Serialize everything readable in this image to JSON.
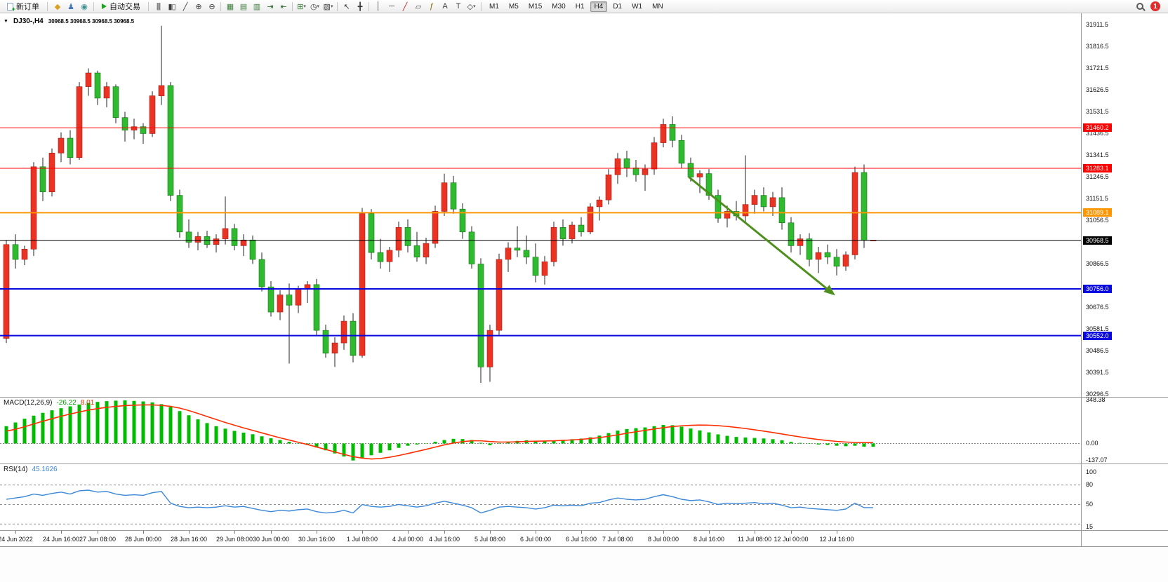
{
  "toolbar": {
    "new_order_label": "新订单",
    "autotrading_label": "自动交易",
    "notification_count": "1",
    "left_icons": [
      {
        "name": "mql5-wizard-icon",
        "glyph": "◆",
        "color": "#dba021"
      },
      {
        "name": "community-icon",
        "glyph": "♟",
        "color": "#4a76b8"
      },
      {
        "name": "market-watch-icon",
        "glyph": "◉",
        "color": "#3f8f8f"
      }
    ],
    "groups": [
      [
        {
          "name": "bar-chart-icon",
          "glyph": "|||"
        },
        {
          "name": "candlestick-chart-icon",
          "glyph": "▮▯"
        },
        {
          "name": "line-chart-icon",
          "glyph": "╱"
        },
        {
          "name": "zoom-in-icon",
          "glyph": "⊕"
        },
        {
          "name": "zoom-out-icon",
          "glyph": "⊖"
        }
      ],
      [
        {
          "name": "tile-windows-icon",
          "glyph": "▦",
          "color": "#3f7f3f"
        },
        {
          "name": "cascade-windows-icon",
          "glyph": "▤",
          "color": "#3f7f3f"
        },
        {
          "name": "arrange-windows-icon",
          "glyph": "▥",
          "color": "#3f7f3f"
        },
        {
          "name": "auto-scroll-icon",
          "glyph": "⇥",
          "color": "#2f6f2f"
        },
        {
          "name": "chart-shift-icon",
          "glyph": "⇤",
          "color": "#2f6f2f"
        }
      ],
      [
        {
          "name": "indicators-icon",
          "glyph": "⊞",
          "color": "#2e7d32",
          "dropdown": true
        },
        {
          "name": "periods-icon",
          "glyph": "◷",
          "dropdown": true
        },
        {
          "name": "templates-icon",
          "glyph": "▧",
          "dropdown": true
        }
      ],
      [
        {
          "name": "cursor-icon",
          "glyph": "↖"
        },
        {
          "name": "crosshair-icon",
          "glyph": "╋"
        }
      ],
      [
        {
          "name": "vertical-line-icon",
          "glyph": "│"
        },
        {
          "name": "horizontal-line-icon",
          "glyph": "─"
        },
        {
          "name": "trendline-icon",
          "glyph": "╱",
          "color": "#b02020"
        },
        {
          "name": "channel-icon",
          "glyph": "▱"
        },
        {
          "name": "fibonacci-icon",
          "glyph": "ƒ",
          "color": "#8a6d00"
        },
        {
          "name": "text-icon",
          "glyph": "A"
        },
        {
          "name": "text-label-icon",
          "glyph": "T"
        },
        {
          "name": "arrows-shapes-icon",
          "glyph": "◇",
          "dropdown": true
        }
      ]
    ],
    "timeframes": [
      "M1",
      "M5",
      "M15",
      "M30",
      "H1",
      "H4",
      "D1",
      "W1",
      "MN"
    ],
    "active_timeframe": "H4"
  },
  "chart": {
    "symbol_title": "DJ30-,H4",
    "ohlc_line": "30968.5 30968.5 30968.5 30968.5",
    "price_axis_labels": [
      "31911.5",
      "31816.5",
      "31721.5",
      "31626.5",
      "31531.5",
      "31436.5",
      "31341.5",
      "31246.5",
      "31151.5",
      "31056.5",
      "30866.5",
      "30676.5",
      "30581.5",
      "30486.5",
      "30391.5",
      "30296.5"
    ],
    "price_line_badges": [
      {
        "name": "resistance-line-1",
        "price": 31460.2,
        "text": "31460.2",
        "color": "#ff0000",
        "line_width": 1
      },
      {
        "name": "resistance-line-2",
        "price": 31283.1,
        "text": "31283.1",
        "color": "#ff0000",
        "line_width": 1
      },
      {
        "name": "pivot-line",
        "price": 31089.1,
        "text": "31089.1",
        "color": "#ff9500",
        "line_width": 2
      },
      {
        "name": "current-price",
        "price": 30968.5,
        "text": "30968.5",
        "color": "#000000",
        "line_width": 1
      },
      {
        "name": "support-line-1",
        "price": 30756.0,
        "text": "30756.0",
        "color": "#0808e0",
        "line_width": 2
      },
      {
        "name": "support-line-2",
        "price": 30552.0,
        "text": "30552.0",
        "color": "#0808e0",
        "line_width": 2
      }
    ],
    "trend_arrow": {
      "color": "#4e8f1e",
      "start_candle": 74.8,
      "start_price": 31245,
      "end_candle": 90.3,
      "end_price": 30745
    }
  },
  "chart_data": {
    "type": "candlestick",
    "symbol": "DJ30-",
    "timeframe": "H4",
    "ylim": [
      30280,
      31960
    ],
    "colors": {
      "up": "#eb3323",
      "down": "#2fba2f",
      "wick": "#222222",
      "macd_histogram": "#00bb00",
      "macd_signal": "#ff2e00",
      "rsi_line": "#3a87d8"
    },
    "x_labels": [
      "24 Jun 2022",
      "24 Jun 16:00",
      "27 Jun 08:00",
      "28 Jun 00:00",
      "28 Jun 16:00",
      "29 Jun 08:00",
      "30 Jun 00:00",
      "30 Jun 16:00",
      "1 Jul 08:00",
      "4 Jul 00:00",
      "4 Jul 16:00",
      "5 Jul 08:00",
      "6 Jul 00:00",
      "6 Jul 16:00",
      "7 Jul 08:00",
      "8 Jul 00:00",
      "8 Jul 16:00",
      "11 Jul 08:00",
      "12 Jul 00:00",
      "12 Jul 16:00"
    ],
    "x_label_candle_index": [
      1,
      6,
      10,
      15,
      20,
      25,
      29,
      34,
      39,
      44,
      48,
      53,
      58,
      63,
      67,
      72,
      77,
      82,
      86,
      91
    ],
    "candles": [
      [
        30540,
        30970,
        30520,
        30950
      ],
      [
        30950,
        30995,
        30845,
        30885
      ],
      [
        30885,
        30945,
        30860,
        30930
      ],
      [
        30930,
        31310,
        30900,
        31290
      ],
      [
        31290,
        31330,
        31140,
        31180
      ],
      [
        31180,
        31370,
        31160,
        31350
      ],
      [
        31350,
        31440,
        31310,
        31415
      ],
      [
        31415,
        31450,
        31300,
        31330
      ],
      [
        31330,
        31660,
        31320,
        31640
      ],
      [
        31640,
        31720,
        31600,
        31700
      ],
      [
        31700,
        31710,
        31560,
        31590
      ],
      [
        31590,
        31660,
        31550,
        31640
      ],
      [
        31640,
        31650,
        31480,
        31505
      ],
      [
        31505,
        31530,
        31400,
        31450
      ],
      [
        31450,
        31500,
        31410,
        31465
      ],
      [
        31465,
        31480,
        31390,
        31435
      ],
      [
        31435,
        31620,
        31420,
        31600
      ],
      [
        31600,
        31906,
        31560,
        31645
      ],
      [
        31645,
        31660,
        31140,
        31165
      ],
      [
        31165,
        31190,
        30980,
        31005
      ],
      [
        31005,
        31060,
        30935,
        30960
      ],
      [
        30960,
        31005,
        30925,
        30985
      ],
      [
        30985,
        31010,
        30935,
        30950
      ],
      [
        30950,
        30995,
        30915,
        30975
      ],
      [
        30975,
        31160,
        30950,
        31020
      ],
      [
        31020,
        31040,
        30925,
        30945
      ],
      [
        30945,
        30995,
        30900,
        30970
      ],
      [
        30970,
        30990,
        30865,
        30885
      ],
      [
        30885,
        30915,
        30745,
        30765
      ],
      [
        30765,
        30790,
        30635,
        30655
      ],
      [
        30655,
        30750,
        30620,
        30730
      ],
      [
        30730,
        30780,
        30430,
        30685
      ],
      [
        30685,
        30770,
        30650,
        30755
      ],
      [
        30755,
        30790,
        30695,
        30775
      ],
      [
        30775,
        30800,
        30555,
        30575
      ],
      [
        30575,
        30600,
        30455,
        30475
      ],
      [
        30475,
        30545,
        30415,
        30520
      ],
      [
        30520,
        30640,
        30490,
        30615
      ],
      [
        30615,
        30650,
        30435,
        30465
      ],
      [
        30465,
        31110,
        30455,
        31085
      ],
      [
        31085,
        31105,
        30885,
        30915
      ],
      [
        30915,
        30975,
        30845,
        30875
      ],
      [
        30875,
        30940,
        30830,
        30925
      ],
      [
        30925,
        31050,
        30895,
        31025
      ],
      [
        31025,
        31060,
        30915,
        30945
      ],
      [
        30945,
        31005,
        30875,
        30895
      ],
      [
        30895,
        30980,
        30865,
        30955
      ],
      [
        30955,
        31120,
        30935,
        31095
      ],
      [
        31095,
        31260,
        31075,
        31220
      ],
      [
        31220,
        31250,
        31085,
        31105
      ],
      [
        31105,
        31130,
        30975,
        31005
      ],
      [
        31005,
        31030,
        30845,
        30865
      ],
      [
        30865,
        30890,
        30345,
        30415
      ],
      [
        30415,
        30600,
        30350,
        30575
      ],
      [
        30575,
        30910,
        30555,
        30885
      ],
      [
        30885,
        30960,
        30830,
        30935
      ],
      [
        30935,
        31030,
        30895,
        30925
      ],
      [
        30925,
        30990,
        30865,
        30895
      ],
      [
        30895,
        30955,
        30785,
        30815
      ],
      [
        30815,
        30900,
        30775,
        30875
      ],
      [
        30875,
        31050,
        30855,
        31025
      ],
      [
        31025,
        31060,
        30945,
        30975
      ],
      [
        30975,
        31050,
        30955,
        31035
      ],
      [
        31035,
        31070,
        30985,
        31005
      ],
      [
        31005,
        31130,
        30995,
        31115
      ],
      [
        31115,
        31160,
        31055,
        31145
      ],
      [
        31145,
        31280,
        31125,
        31255
      ],
      [
        31255,
        31350,
        31215,
        31325
      ],
      [
        31325,
        31360,
        31245,
        31285
      ],
      [
        31285,
        31320,
        31225,
        31255
      ],
      [
        31255,
        31300,
        31185,
        31280
      ],
      [
        31280,
        31420,
        31255,
        31395
      ],
      [
        31395,
        31500,
        31375,
        31475
      ],
      [
        31475,
        31510,
        31375,
        31405
      ],
      [
        31405,
        31430,
        31285,
        31305
      ],
      [
        31305,
        31330,
        31225,
        31245
      ],
      [
        31245,
        31275,
        31175,
        31260
      ],
      [
        31260,
        31280,
        31145,
        31165
      ],
      [
        31165,
        31190,
        31045,
        31065
      ],
      [
        31065,
        31120,
        31025,
        31095
      ],
      [
        31095,
        31140,
        31055,
        31075
      ],
      [
        31075,
        31340,
        31050,
        31125
      ],
      [
        31125,
        31190,
        31085,
        31165
      ],
      [
        31165,
        31200,
        31095,
        31115
      ],
      [
        31115,
        31180,
        31075,
        31155
      ],
      [
        31155,
        31200,
        31015,
        31045
      ],
      [
        31045,
        31070,
        30915,
        30945
      ],
      [
        30945,
        30995,
        30905,
        30975
      ],
      [
        30975,
        31000,
        30855,
        30885
      ],
      [
        30885,
        30940,
        30825,
        30915
      ],
      [
        30915,
        30950,
        30865,
        30895
      ],
      [
        30895,
        30930,
        30815,
        30855
      ],
      [
        30855,
        30920,
        30835,
        30905
      ],
      [
        30905,
        31290,
        30885,
        31265
      ],
      [
        31265,
        31300,
        30935,
        30968.5
      ],
      [
        30968.5,
        30968.5,
        30968.5,
        30968.5
      ]
    ],
    "macd": {
      "label": "MACD(12,26,9)",
      "main_value": "-26.22",
      "signal_value": "8.01",
      "axis_labels": [
        "348.38",
        "0.00",
        "-137.07"
      ],
      "ylim": [
        -150,
        365
      ],
      "histogram": [
        140,
        170,
        200,
        225,
        248,
        268,
        285,
        300,
        315,
        328,
        336,
        342,
        346,
        348.38,
        344,
        340,
        332,
        318,
        295,
        262,
        228,
        195,
        165,
        140,
        120,
        102,
        88,
        75,
        58,
        42,
        28,
        14,
        2,
        -12,
        -32,
        -55,
        -80,
        -105,
        -137.07,
        -115,
        -95,
        -75,
        -55,
        -35,
        -18,
        -8,
        2,
        14,
        28,
        38,
        36,
        28,
        6,
        -14,
        4,
        14,
        21,
        26,
        22,
        18,
        24,
        30,
        35,
        40,
        50,
        64,
        84,
        104,
        117,
        124,
        130,
        140,
        150,
        148,
        136,
        121,
        106,
        90,
        74,
        62,
        53,
        49,
        45,
        41,
        35,
        26,
        13,
        5,
        -2,
        -8,
        -12,
        -18,
        -22,
        -18,
        -26.22,
        -26.22
      ],
      "signal": [
        100,
        115,
        135,
        158,
        180,
        200,
        220,
        238,
        255,
        270,
        282,
        292,
        300,
        306,
        310,
        312,
        312,
        308,
        300,
        286,
        266,
        243,
        218,
        194,
        170,
        148,
        126,
        106,
        86,
        66,
        46,
        28,
        10,
        -8,
        -28,
        -48,
        -68,
        -88,
        -106,
        -118,
        -125,
        -121,
        -111,
        -97,
        -81,
        -64,
        -47,
        -29,
        -11,
        4,
        15,
        22,
        22,
        16,
        12,
        12,
        14,
        17,
        19,
        20,
        22,
        25,
        29,
        34,
        40,
        48,
        58,
        70,
        83,
        95,
        106,
        117,
        128,
        137,
        143,
        147,
        149,
        148,
        144,
        138,
        130,
        121,
        111,
        100,
        89,
        77,
        65,
        53,
        42,
        32,
        24,
        17,
        12,
        9,
        8.01,
        8.01
      ]
    },
    "rsi": {
      "label": "RSI(14)",
      "value": "45.1626",
      "axis_labels": [
        "100",
        "80",
        "50",
        "15"
      ],
      "levels": [
        80,
        50,
        20
      ],
      "range": [
        15,
        100
      ],
      "series": [
        58,
        60,
        62,
        66,
        64,
        67,
        69,
        66,
        71,
        72,
        69,
        70,
        66,
        64,
        65,
        64,
        68,
        70,
        52,
        47,
        45,
        46,
        45,
        46,
        48,
        46,
        47,
        44,
        41,
        39,
        41,
        40,
        42,
        43,
        39,
        37,
        38,
        41,
        37,
        50,
        47,
        46,
        47,
        50,
        48,
        46,
        48,
        52,
        55,
        52,
        49,
        45,
        37,
        41,
        46,
        47,
        46,
        45,
        43,
        45,
        49,
        48,
        49,
        48,
        52,
        53,
        57,
        60,
        58,
        57,
        58,
        62,
        65,
        62,
        58,
        56,
        57,
        54,
        50,
        52,
        51,
        52,
        53,
        51,
        52,
        49,
        45,
        46,
        44,
        43,
        42,
        41,
        43,
        52,
        45.16,
        45.16
      ]
    }
  }
}
